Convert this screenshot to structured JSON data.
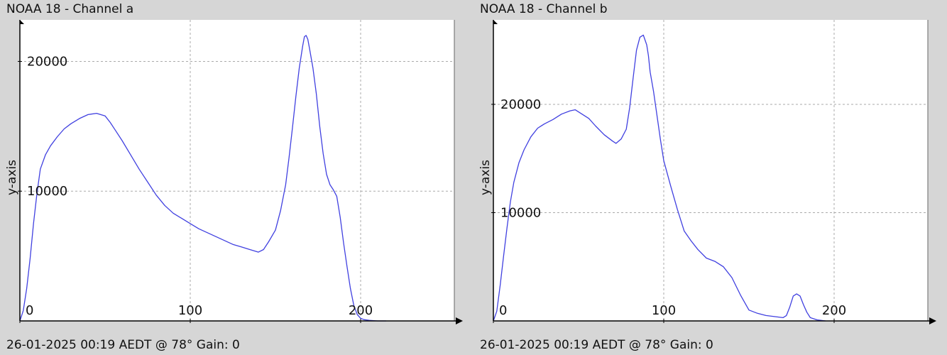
{
  "chart_data": [
    {
      "type": "line",
      "title": "NOAA 18 - Channel a",
      "footer": "26-01-2025 00:19 AEDT @ 78° Gain: 0",
      "xlabel": "",
      "ylabel": "y-axis",
      "xlim": [
        0,
        255
      ],
      "ylim": [
        0,
        23200
      ],
      "xticks": [
        0,
        100,
        200
      ],
      "yticks": [
        10000,
        20000
      ],
      "grid": true,
      "line_color": "#4040e0",
      "series": [
        {
          "x": [
            0,
            2,
            4,
            6,
            8,
            10,
            12,
            15,
            18,
            22,
            26,
            30,
            35,
            40,
            45,
            50,
            53,
            56,
            60,
            65,
            70,
            75,
            80,
            85,
            90,
            95,
            100,
            105,
            110,
            115,
            120,
            125,
            130,
            135,
            140,
            143,
            146,
            150,
            153,
            156,
            158,
            160,
            162,
            164,
            166,
            167,
            168,
            169,
            170,
            172,
            174,
            176,
            178,
            180,
            182,
            184,
            186,
            188,
            190,
            192,
            194,
            196,
            198,
            200,
            202,
            205,
            210,
            215
          ],
          "y": [
            0,
            800,
            2500,
            4800,
            7500,
            9800,
            11700,
            12800,
            13500,
            14200,
            14800,
            15200,
            15600,
            15900,
            16000,
            15800,
            15300,
            14700,
            13900,
            12800,
            11700,
            10700,
            9700,
            8900,
            8300,
            7900,
            7500,
            7100,
            6800,
            6500,
            6200,
            5900,
            5700,
            5500,
            5300,
            5500,
            6100,
            7000,
            8500,
            10500,
            12600,
            14900,
            17300,
            19500,
            21200,
            21900,
            22000,
            21700,
            21000,
            19500,
            17500,
            15000,
            12900,
            11300,
            10500,
            10100,
            9600,
            8000,
            6000,
            4200,
            2500,
            1200,
            500,
            200,
            100,
            50,
            0,
            0
          ]
        }
      ]
    },
    {
      "type": "line",
      "title": "NOAA 18 - Channel b",
      "footer": "26-01-2025 00:19 AEDT @ 78° Gain: 0",
      "xlabel": "",
      "ylabel": "y-axis",
      "xlim": [
        0,
        255
      ],
      "ylim": [
        0,
        27800
      ],
      "xticks": [
        0,
        100,
        200
      ],
      "yticks": [
        10000,
        20000
      ],
      "grid": true,
      "line_color": "#4040e0",
      "series": [
        {
          "x": [
            0,
            2,
            4,
            6,
            8,
            10,
            12,
            15,
            18,
            22,
            26,
            30,
            35,
            40,
            45,
            48,
            52,
            56,
            60,
            65,
            70,
            72,
            75,
            78,
            80,
            82,
            84,
            86,
            88,
            90,
            91,
            92,
            94,
            96,
            98,
            100,
            104,
            108,
            112,
            116,
            120,
            125,
            130,
            135,
            140,
            145,
            150,
            155,
            160,
            165,
            170,
            172,
            174,
            176,
            178,
            180,
            182,
            184,
            186,
            190,
            195
          ],
          "y": [
            0,
            900,
            3300,
            6000,
            8600,
            11000,
            12800,
            14600,
            15800,
            17000,
            17800,
            18200,
            18600,
            19100,
            19400,
            19500,
            19100,
            18700,
            18000,
            17200,
            16600,
            16400,
            16800,
            17700,
            19700,
            22400,
            25000,
            26200,
            26400,
            25500,
            24500,
            23000,
            21200,
            19000,
            16800,
            14800,
            12500,
            10300,
            8300,
            7400,
            6600,
            5800,
            5500,
            5000,
            4000,
            2400,
            1000,
            700,
            500,
            400,
            300,
            500,
            1300,
            2300,
            2500,
            2300,
            1500,
            800,
            300,
            100,
            0
          ]
        }
      ]
    }
  ]
}
